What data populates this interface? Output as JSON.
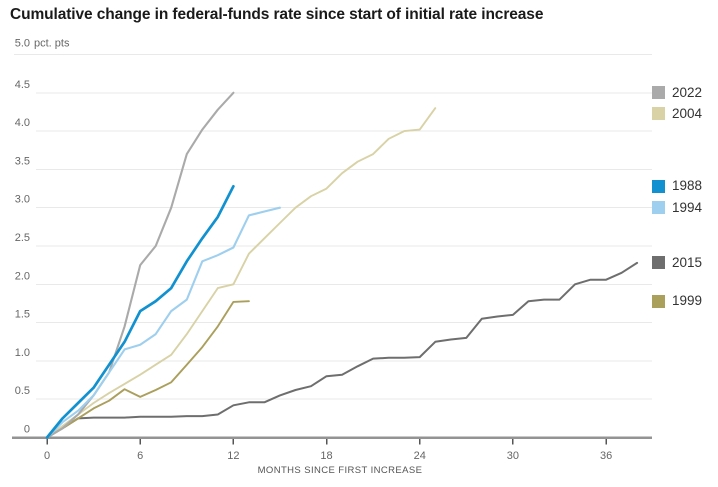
{
  "chart_data": {
    "type": "line",
    "title": "Cumulative change in federal-funds rate since start of initial rate increase",
    "xlabel": "MONTHS SINCE FIRST INCREASE",
    "y_axis_top_label": "5.0",
    "y_axis_unit_suffix": "pct. pts",
    "x_ticks": [
      0,
      6,
      12,
      18,
      24,
      30,
      36
    ],
    "y_ticks": [
      0,
      0.5,
      1.0,
      1.5,
      2.0,
      2.5,
      3.0,
      3.5,
      4.0,
      4.5,
      5.0
    ],
    "y_tick_labels": [
      "0",
      "0.5",
      "1.0",
      "1.5",
      "2.0",
      "2.5",
      "3.0",
      "3.5",
      "4.0",
      "4.5",
      "5.0"
    ],
    "xlim": [
      0,
      38.7
    ],
    "ylim": [
      0,
      5.0
    ],
    "grid": "horizontal",
    "legend_position": "right margin, each entry aligned to the series' final value",
    "x_unit": "months since first increase",
    "y_unit": "cumulative percentage points",
    "draw_order": [
      "2015",
      "2004",
      "1999",
      "2022",
      "1994",
      "1988"
    ],
    "series": [
      {
        "name": "2022",
        "color": "#aaaaaa",
        "line_width": 2.1,
        "months_start": 0,
        "values": [
          0,
          0.12,
          0.3,
          0.55,
          0.85,
          1.45,
          2.25,
          2.5,
          3.0,
          3.7,
          4.02,
          4.28,
          4.5
        ]
      },
      {
        "name": "2004",
        "color": "#d8d2a6",
        "line_width": 1.9,
        "months_start": 0,
        "values": [
          0,
          0.15,
          0.3,
          0.45,
          0.58,
          0.7,
          0.82,
          0.95,
          1.08,
          1.35,
          1.65,
          1.95,
          2.0,
          2.4,
          2.6,
          2.8,
          3.0,
          3.15,
          3.25,
          3.45,
          3.6,
          3.7,
          3.9,
          4.0,
          4.02,
          4.3
        ]
      },
      {
        "name": "1988",
        "color": "#1191cf",
        "line_width": 2.7,
        "months_start": 0,
        "values": [
          0,
          0.25,
          0.45,
          0.65,
          0.95,
          1.25,
          1.65,
          1.78,
          1.95,
          2.3,
          2.6,
          2.88,
          3.28
        ]
      },
      {
        "name": "1994",
        "color": "#9ecfee",
        "line_width": 2.1,
        "months_start": 0,
        "values": [
          0,
          0.2,
          0.35,
          0.55,
          0.85,
          1.15,
          1.21,
          1.35,
          1.65,
          1.8,
          2.3,
          2.38,
          2.48,
          2.9,
          2.95,
          3.0
        ]
      },
      {
        "name": "2015",
        "color": "#6e6e6e",
        "line_width": 2.0,
        "months_start": 0,
        "values": [
          0,
          0.12,
          0.25,
          0.26,
          0.26,
          0.26,
          0.27,
          0.27,
          0.27,
          0.28,
          0.28,
          0.3,
          0.42,
          0.46,
          0.46,
          0.55,
          0.62,
          0.67,
          0.8,
          0.82,
          0.93,
          1.03,
          1.04,
          1.04,
          1.05,
          1.25,
          1.28,
          1.3,
          1.55,
          1.58,
          1.6,
          1.78,
          1.8,
          1.8,
          2.0,
          2.06,
          2.06,
          2.15,
          2.28
        ]
      },
      {
        "name": "1999",
        "color": "#ab9f5c",
        "line_width": 1.9,
        "months_start": 0,
        "values": [
          0,
          0.12,
          0.25,
          0.38,
          0.48,
          0.63,
          0.53,
          0.62,
          0.72,
          0.95,
          1.18,
          1.45,
          1.77,
          1.78
        ]
      }
    ]
  }
}
